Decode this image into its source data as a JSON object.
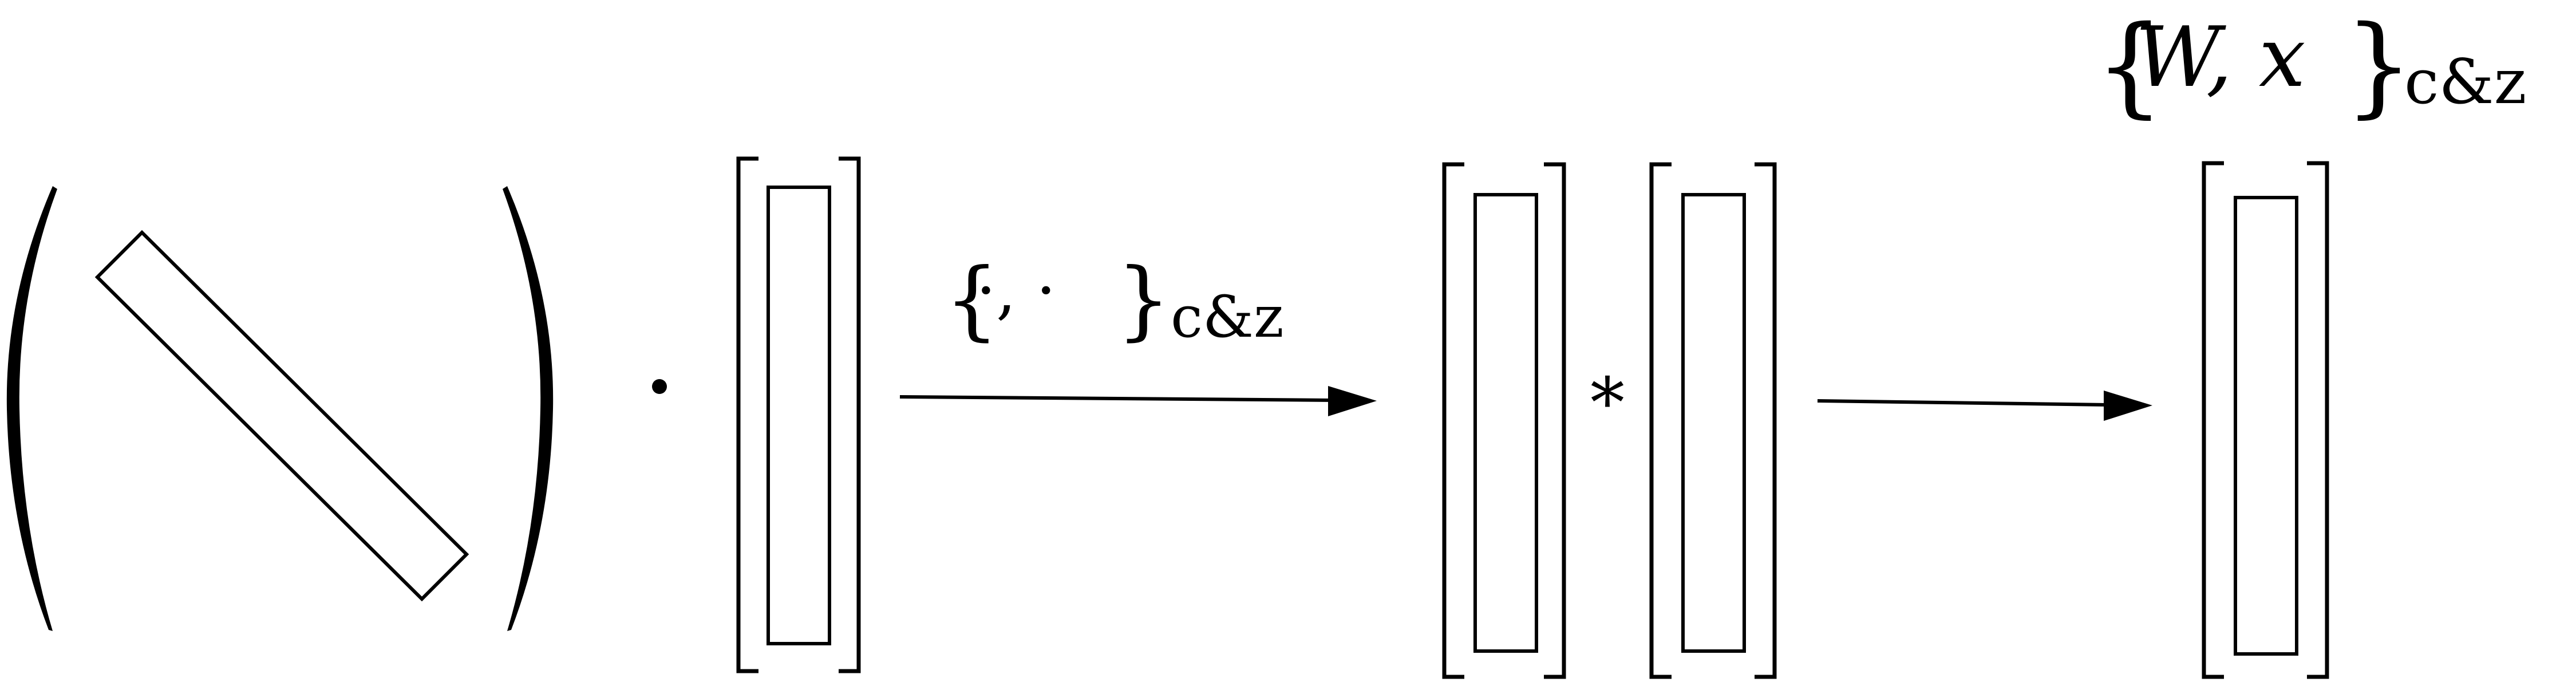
{
  "diagram": {
    "arrow1_label": {
      "open_brace": "{",
      "args": "·, ·",
      "close_brace": "}",
      "subscript": "c&z"
    },
    "arrow2_label": {
      "open_brace": "{",
      "args": "W, x",
      "close_brace": "}",
      "subscript": "c&z"
    },
    "dot_operator": "·",
    "star_operator": "*"
  },
  "colors": {
    "ink": "#000000",
    "background": "#ffffff"
  }
}
